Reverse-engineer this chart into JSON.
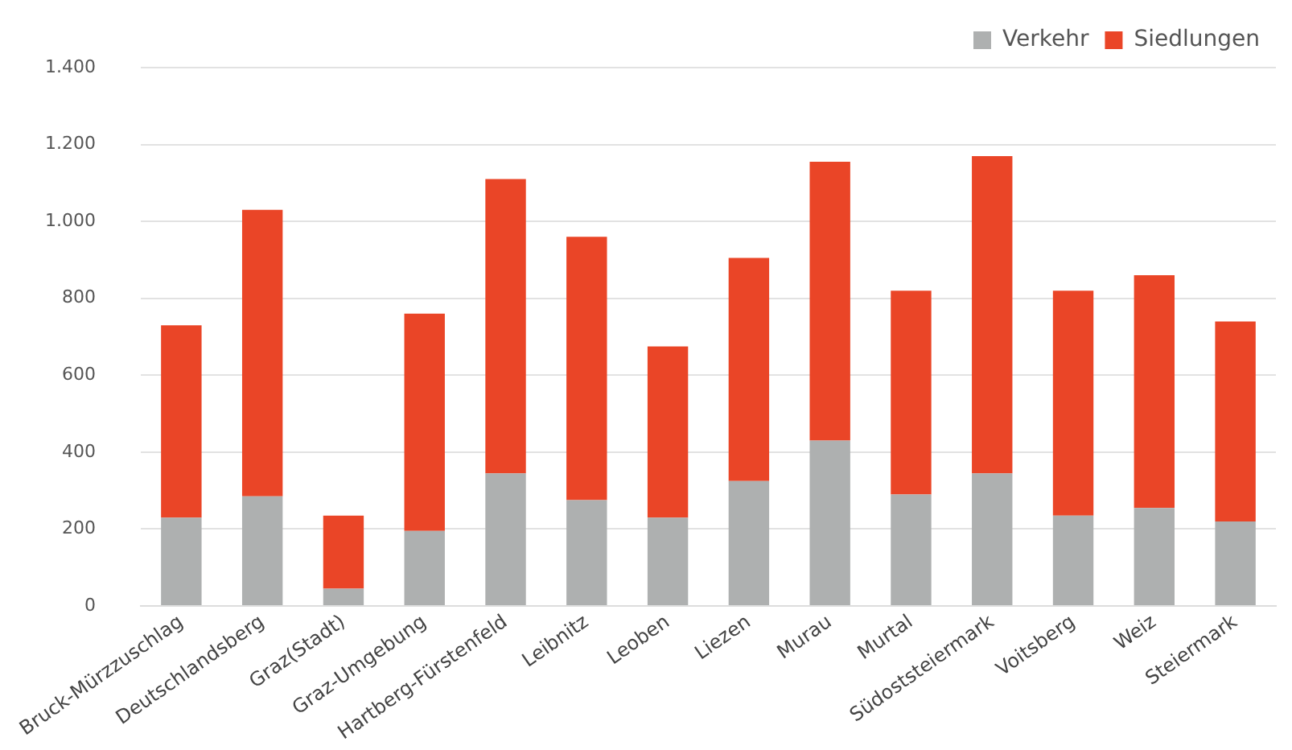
{
  "chart_data": {
    "type": "bar",
    "stacked": true,
    "categories": [
      "Bruck-Mürzzuschlag",
      "Deutschlandsberg",
      "Graz(Stadt)",
      "Graz-Umgebung",
      "Hartberg-Fürstenfeld",
      "Leibnitz",
      "Leoben",
      "Liezen",
      "Murau",
      "Murtal",
      "Südoststeiermark",
      "Voitsberg",
      "Weiz",
      "Steiermark"
    ],
    "series": [
      {
        "name": "Verkehr",
        "color": "#aeb0b0",
        "values": [
          230,
          285,
          45,
          195,
          345,
          275,
          230,
          325,
          430,
          290,
          345,
          235,
          255,
          220
        ]
      },
      {
        "name": "Siedlungen",
        "color": "#ea4527",
        "values": [
          500,
          745,
          190,
          565,
          765,
          685,
          445,
          580,
          725,
          530,
          825,
          585,
          605,
          520
        ]
      }
    ],
    "ylim": [
      0,
      1400
    ],
    "yticks": [
      0,
      {
        "value": 200,
        "label": "200"
      },
      {
        "value": 400,
        "label": "400"
      },
      {
        "value": 600,
        "label": "600"
      },
      {
        "value": 800,
        "label": "800"
      },
      {
        "value": 1000,
        "label": "1.000"
      },
      {
        "value": 1200,
        "label": "1.200"
      },
      {
        "value": 1400,
        "label": "1.400"
      }
    ],
    "grid": "y",
    "legend": "top right"
  }
}
